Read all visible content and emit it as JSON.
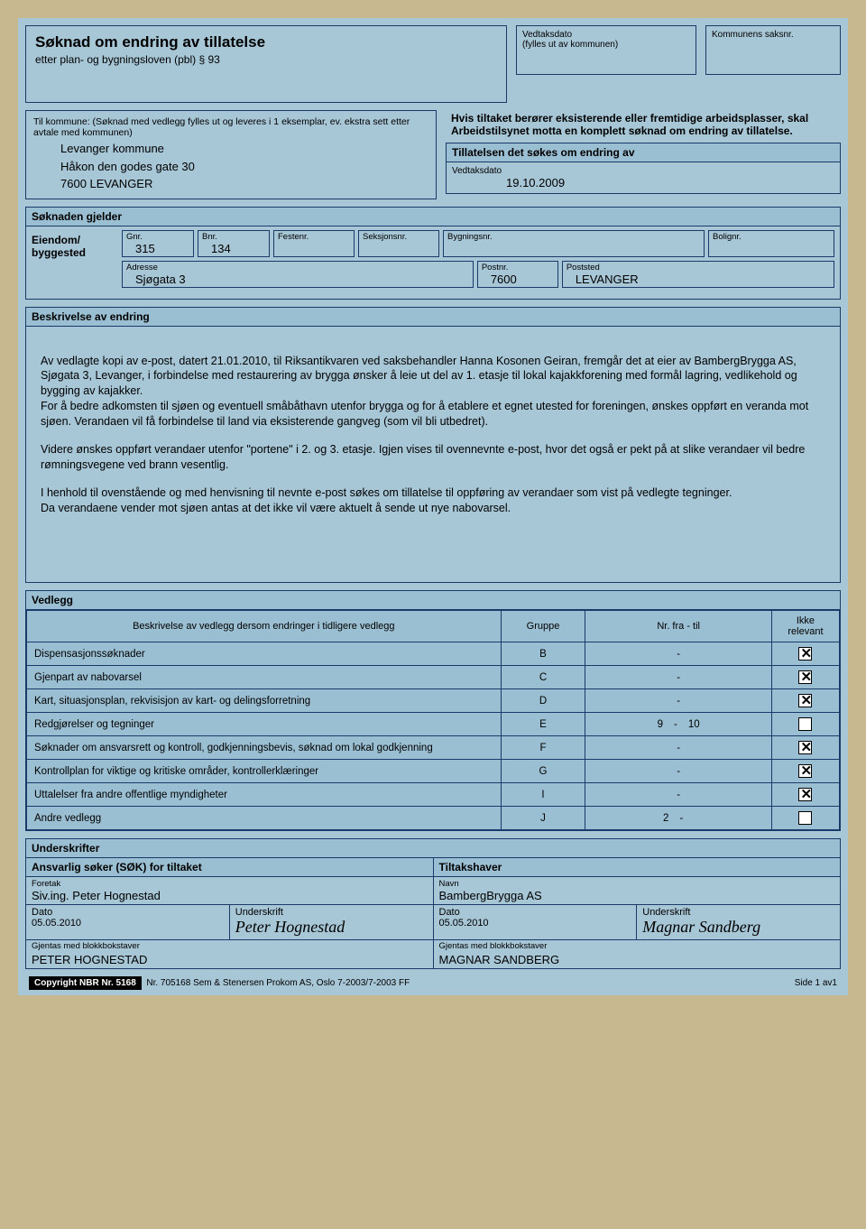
{
  "title": "Søknad om endring av tillatelse",
  "subtitle": "etter plan- og bygningsloven (pbl) § 93",
  "vedtaksdato_label": "Vedtaksdato",
  "vedtaksdato_sub": "(fylles ut av kommunen)",
  "saksnr_label": "Kommunens saksnr.",
  "kommune_instr": "Til kommune: (Søknad med vedlegg fylles ut og leveres i 1 eksemplar, ev. ekstra sett etter avtale med kommunen)",
  "kommune_lines": [
    "Levanger kommune",
    "Håkon den godes gate 30",
    "7600  LEVANGER"
  ],
  "notice_text": "Hvis tiltaket berører eksisterende eller fremtidige arbeidsplasser, skal Arbeidstilsynet motta en komplett søknad om endring av tillatelse.",
  "tillatelsen_hdr": "Tillatelsen det søkes om endring av",
  "tillatelsen_lbl": "Vedtaksdato",
  "tillatelsen_date": "19.10.2009",
  "gjelder_hdr": "Søknaden gjelder",
  "gjelder_left1": "Eiendom/",
  "gjelder_left2": "byggested",
  "fields": {
    "gnr": {
      "lbl": "Gnr.",
      "val": "315"
    },
    "bnr": {
      "lbl": "Bnr.",
      "val": "134"
    },
    "festenr": {
      "lbl": "Festenr.",
      "val": ""
    },
    "seksjonsnr": {
      "lbl": "Seksjonsnr.",
      "val": ""
    },
    "bygningsnr": {
      "lbl": "Bygningsnr.",
      "val": ""
    },
    "bolignr": {
      "lbl": "Bolignr.",
      "val": ""
    },
    "adresse": {
      "lbl": "Adresse",
      "val": "Sjøgata 3"
    },
    "postnr": {
      "lbl": "Postnr.",
      "val": "7600"
    },
    "poststed": {
      "lbl": "Poststed",
      "val": "LEVANGER"
    }
  },
  "beskr_hdr": "Beskrivelse av endring",
  "beskr_paras": [
    "Av vedlagte kopi av e-post, datert 21.01.2010, til Riksantikvaren ved saksbehandler Hanna Kosonen Geiran, fremgår det at eier av BambergBrygga AS, Sjøgata 3, Levanger, i forbindelse med restaurering av brygga ønsker å leie ut del av 1. etasje til lokal kajakkforening med formål lagring, vedlikehold og bygging av kajakker.\nFor å bedre adkomsten til sjøen og eventuell småbåthavn utenfor brygga og for å etablere et egnet utested for foreningen, ønskes oppført en veranda mot sjøen. Verandaen vil få forbindelse til land via eksisterende gangveg (som vil bli utbedret).",
    "Videre ønskes oppført verandaer utenfor \"portene\" i 2. og 3. etasje. Igjen vises til ovennevnte e-post, hvor det også er pekt på at slike verandaer vil bedre rømningsvegene ved brann vesentlig.",
    "I henhold til ovenstående og med henvisning til nevnte e-post søkes om tillatelse til oppføring av verandaer som vist på vedlegte tegninger.\nDa verandaene vender mot sjøen antas at det ikke vil være aktuelt å sende ut nye nabovarsel."
  ],
  "vedlegg_hdr": "Vedlegg",
  "vedlegg_cols": {
    "desc": "Beskrivelse av vedlegg dersom endringer i tidligere vedlegg",
    "gruppe": "Gruppe",
    "nr": "Nr. fra - til",
    "ikke": "Ikke relevant"
  },
  "vedlegg_rows": [
    {
      "desc": "Dispensasjonssøknader",
      "g": "B",
      "from": "",
      "to": "",
      "ikke": true
    },
    {
      "desc": "Gjenpart av nabovarsel",
      "g": "C",
      "from": "",
      "to": "",
      "ikke": true
    },
    {
      "desc": "Kart, situasjonsplan, rekvisisjon av kart- og delingsforretning",
      "g": "D",
      "from": "",
      "to": "",
      "ikke": true
    },
    {
      "desc": "Redgjørelser og tegninger",
      "g": "E",
      "from": "9",
      "to": "10",
      "ikke": false
    },
    {
      "desc": "Søknader om ansvarsrett og kontroll, godkjenningsbevis, søknad om lokal godkjenning",
      "g": "F",
      "from": "",
      "to": "",
      "ikke": true
    },
    {
      "desc": "Kontrollplan for viktige og kritiske områder, kontrollerklæringer",
      "g": "G",
      "from": "",
      "to": "",
      "ikke": true
    },
    {
      "desc": "Uttalelser fra andre offentlige myndigheter",
      "g": "I",
      "from": "",
      "to": "",
      "ikke": true
    },
    {
      "desc": "Andre vedlegg",
      "g": "J",
      "from": "2",
      "to": "",
      "ikke": false
    }
  ],
  "under_hdr": "Underskrifter",
  "soker_hdr": "Ansvarlig søker (SØK) for tiltaket",
  "tiltakshaver_hdr": "Tiltakshaver",
  "foretak_lbl": "Foretak",
  "foretak_val": "Siv.ing. Peter Hognestad",
  "navn_lbl": "Navn",
  "navn_val": "BambergBrygga AS",
  "dato_lbl": "Dato",
  "undersk_lbl": "Underskrift",
  "dato_val": "05.05.2010",
  "block_lbl": "Gjentas med blokkbokstaver",
  "block1": "PETER HOGNESTAD",
  "block2": "MAGNAR SANDBERG",
  "sig1": "Peter Hognestad",
  "sig2": "Magnar Sandberg",
  "copyright": "Copyright NBR Nr. 5168",
  "footer_mid": "Nr. 705168 Sem & Stenersen Prokom AS, Oslo  7-2003/7-2003 FF",
  "footer_right": "Side 1 av1"
}
